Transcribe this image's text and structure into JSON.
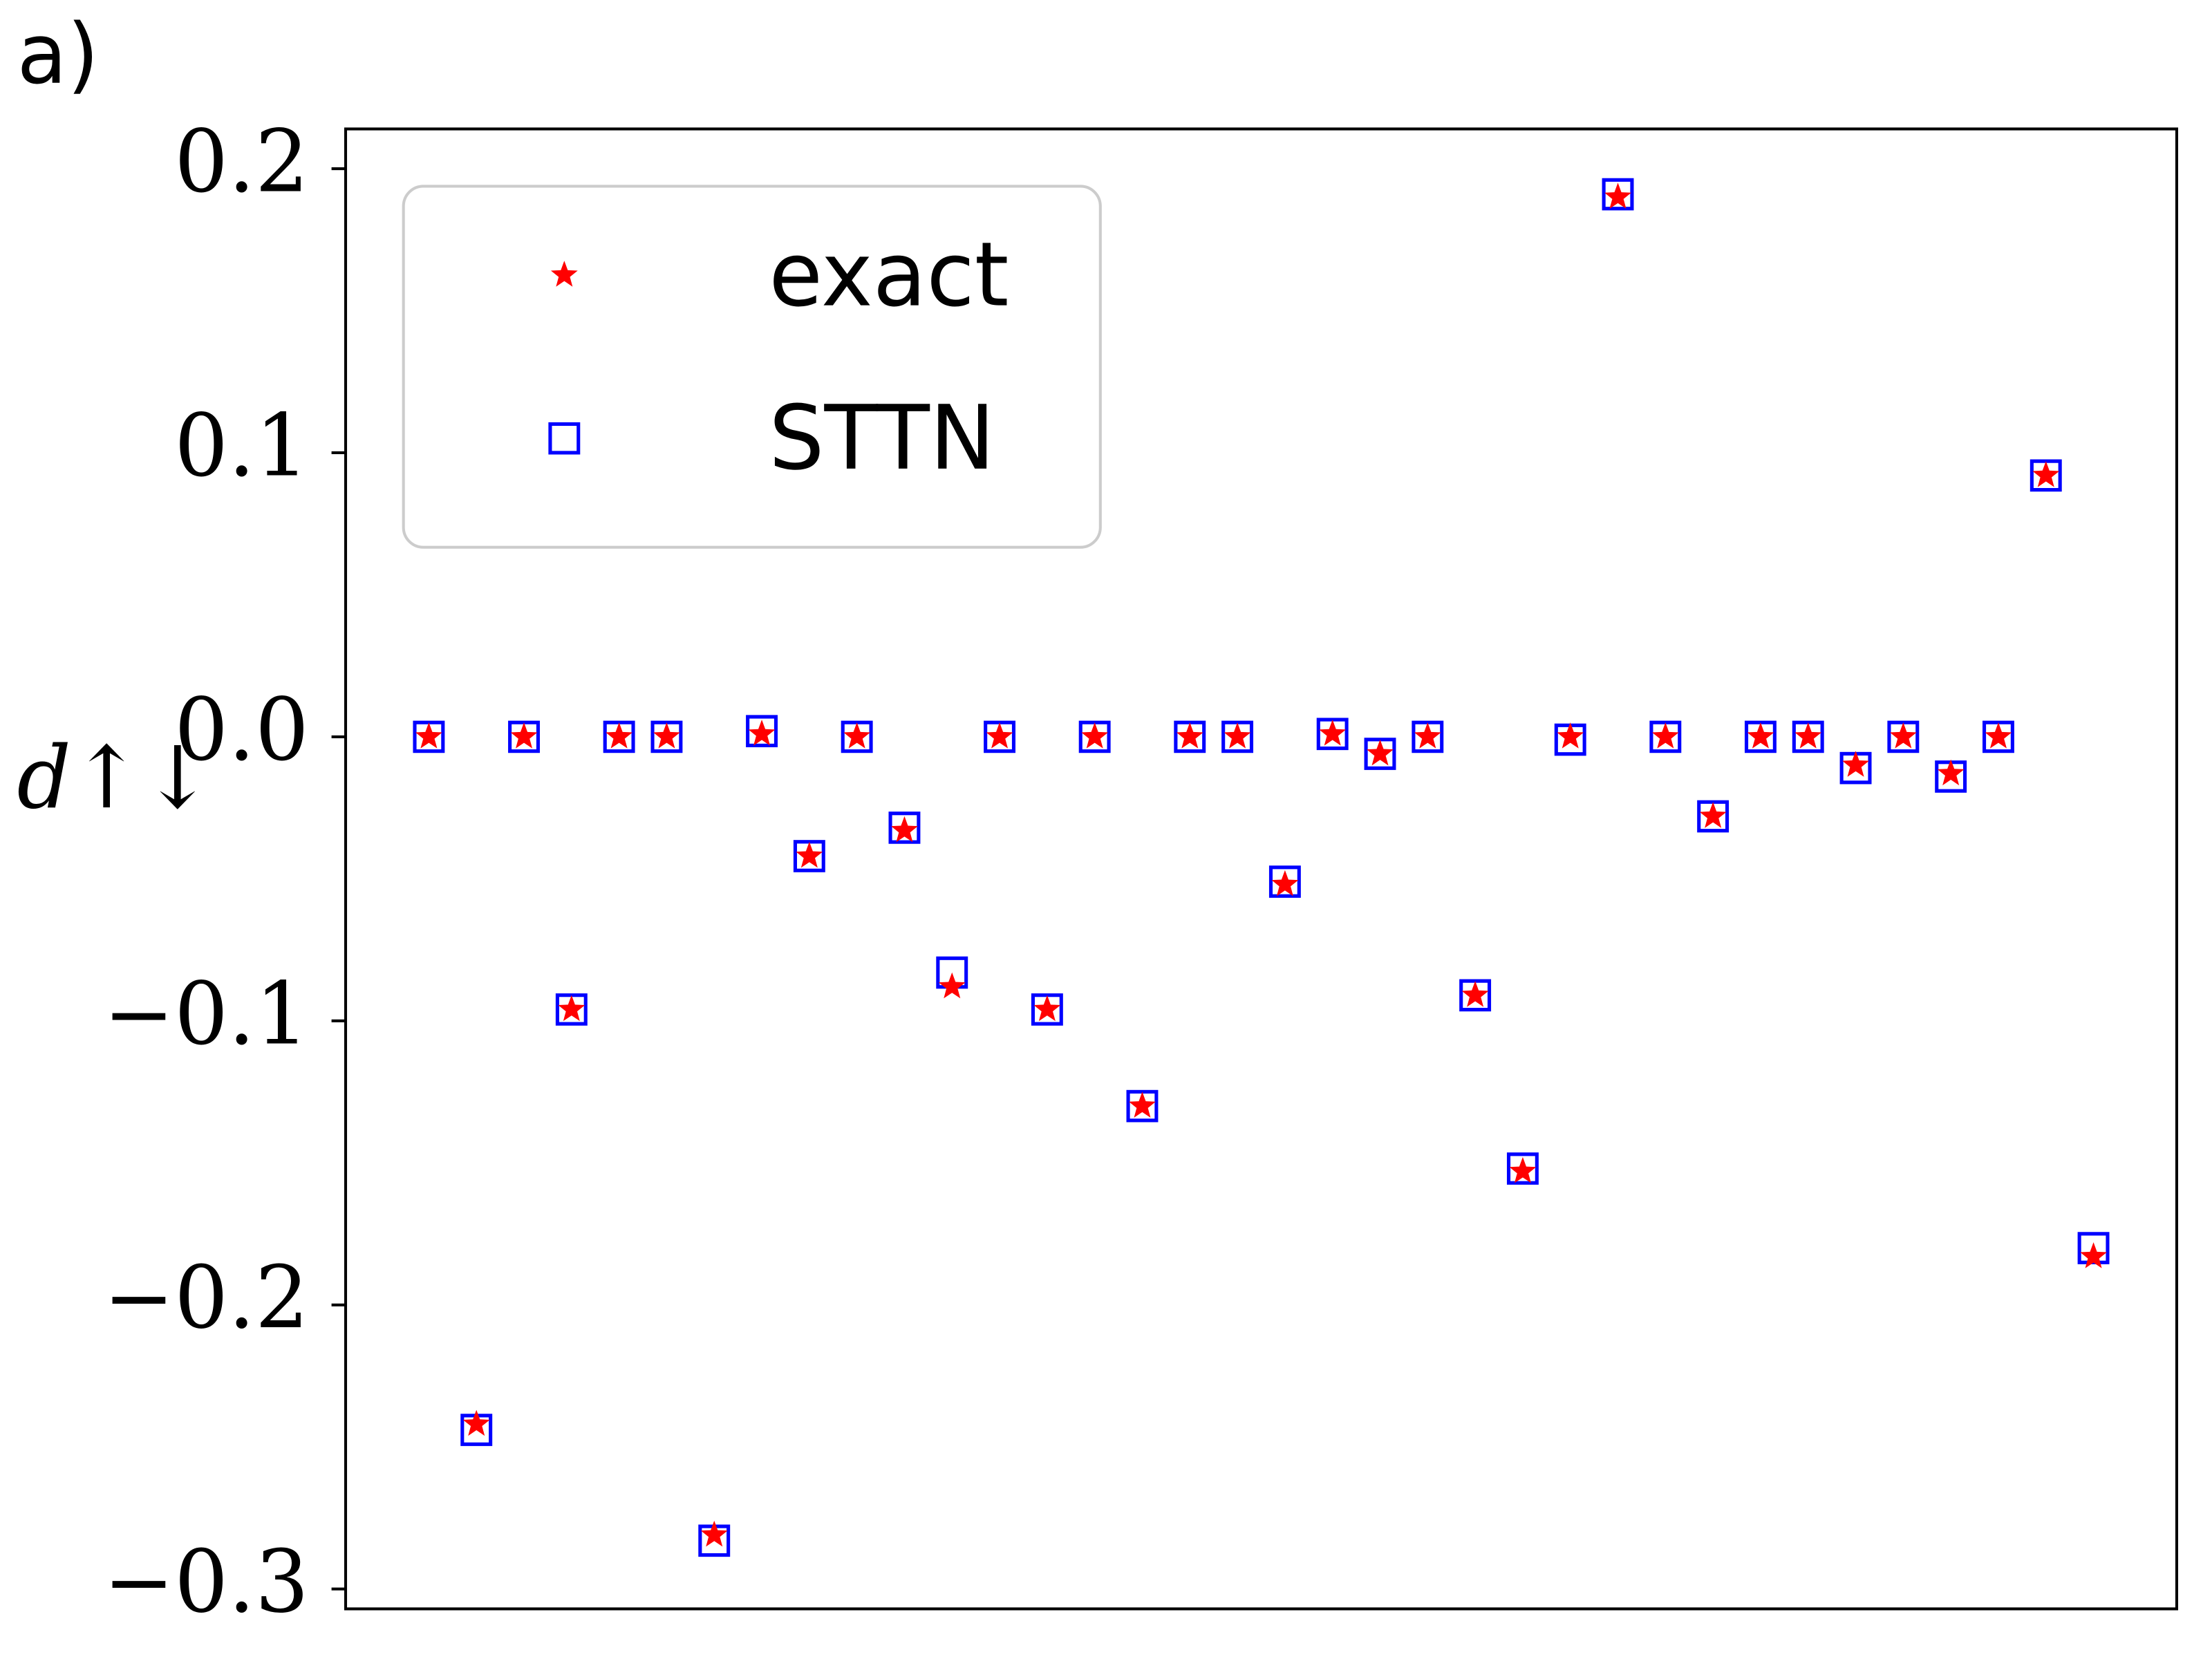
{
  "chart_data": {
    "type": "scatter",
    "panel_label": "a)",
    "ylabel": "d↑↓",
    "x": [
      0,
      1,
      2,
      3,
      4,
      5,
      6,
      7,
      8,
      9,
      10,
      11,
      12,
      13,
      14,
      15,
      16,
      17,
      18,
      19,
      20,
      21,
      22,
      23,
      24,
      25,
      26,
      27,
      28,
      29,
      30,
      31,
      32,
      33,
      34,
      35
    ],
    "series": [
      {
        "name": "exact",
        "color": "#ff0000",
        "marker": "star",
        "values": [
          0,
          -0.242,
          0,
          -0.096,
          0,
          0,
          -0.281,
          0.001,
          -0.042,
          0,
          -0.033,
          -0.088,
          0,
          -0.096,
          0,
          -0.13,
          0,
          0,
          -0.052,
          0.001,
          -0.006,
          0,
          -0.091,
          -0.153,
          0,
          0.19,
          0,
          -0.028,
          0,
          0,
          -0.01,
          0,
          -0.013,
          0,
          0.092,
          -0.183
        ]
      },
      {
        "name": "STTN",
        "color": "#0000ff",
        "marker": "square",
        "values": [
          0,
          -0.244,
          0,
          -0.096,
          0,
          0,
          -0.283,
          0.002,
          -0.042,
          0,
          -0.032,
          -0.083,
          0,
          -0.096,
          0,
          -0.13,
          0,
          0,
          -0.051,
          0.001,
          -0.006,
          0,
          -0.091,
          -0.152,
          -0.001,
          0.191,
          0,
          -0.028,
          0,
          0,
          -0.011,
          0,
          -0.014,
          0,
          0.092,
          -0.18
        ]
      }
    ],
    "xlim": [
      -1.75,
      36.75
    ],
    "ylim": [
      -0.307,
      0.214
    ],
    "yticks": [
      0.2,
      0.1,
      {
        "value": 0,
        "label": "0.0"
      },
      {
        "value": -0.1,
        "label": "−0.1"
      },
      {
        "value": -0.2,
        "label": "−0.2"
      },
      {
        "value": -0.3,
        "label": "−0.3"
      }
    ],
    "legend": "upper left"
  }
}
